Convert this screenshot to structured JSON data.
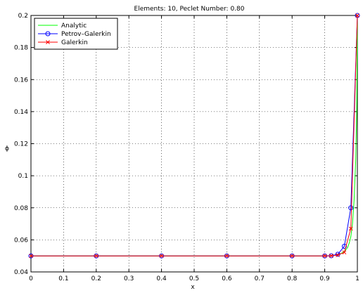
{
  "chart_data": {
    "type": "line",
    "title": "Elements: 10, Peclet Number: 0.80",
    "xlabel": "x",
    "ylabel": "ϕ",
    "xlim": [
      0,
      1
    ],
    "ylim": [
      0.04,
      0.2
    ],
    "xticks": [
      "0",
      "0.1",
      "0.2",
      "0.3",
      "0.4",
      "0.5",
      "0.6",
      "0.7",
      "0.8",
      "0.9",
      "1"
    ],
    "yticks": [
      "0.04",
      "0.06",
      "0.08",
      "0.1",
      "0.12",
      "0.14",
      "0.16",
      "0.18",
      "0.2"
    ],
    "grid": true,
    "legend_position": "top-left",
    "series": [
      {
        "name": "Analytic",
        "color": "#00ff00",
        "marker": "none",
        "x": [
          0,
          0.9,
          0.92,
          0.94,
          0.95,
          0.96,
          0.97,
          0.975,
          0.98,
          0.985,
          0.99,
          0.995,
          0.998,
          1
        ],
        "y": [
          0.05,
          0.05,
          0.0502,
          0.0508,
          0.0515,
          0.0528,
          0.0552,
          0.058,
          0.062,
          0.07,
          0.085,
          0.11,
          0.14,
          0.2
        ]
      },
      {
        "name": "Petrov–Galerkin",
        "color": "#0000ff",
        "marker": "circle",
        "x": [
          0,
          0.2,
          0.4,
          0.6,
          0.8,
          0.9,
          0.92,
          0.94,
          0.96,
          0.98,
          1
        ],
        "y": [
          0.05,
          0.05,
          0.05,
          0.05,
          0.05,
          0.05,
          0.0501,
          0.051,
          0.056,
          0.08,
          0.2
        ]
      },
      {
        "name": "Galerkin",
        "color": "#ff0000",
        "marker": "x",
        "x": [
          0,
          0.2,
          0.4,
          0.6,
          0.8,
          0.9,
          0.92,
          0.94,
          0.96,
          0.98,
          1
        ],
        "y": [
          0.05,
          0.05,
          0.05,
          0.05,
          0.05,
          0.05,
          0.0501,
          0.0505,
          0.0522,
          0.067,
          0.2
        ]
      }
    ]
  }
}
